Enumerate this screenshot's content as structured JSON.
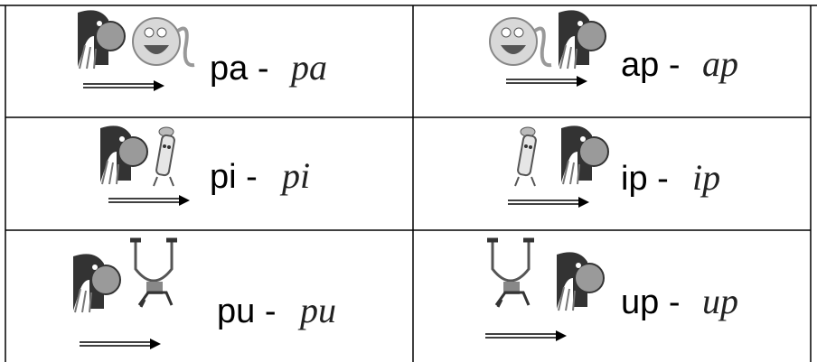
{
  "table": {
    "rows": [
      [
        {
          "syllable": "pa -",
          "cursive": "pa"
        },
        {
          "syllable": "ap -",
          "cursive": "ap"
        }
      ],
      [
        {
          "syllable": "pi -",
          "cursive": "pi"
        },
        {
          "syllable": "ip -",
          "cursive": "ip"
        }
      ],
      [
        {
          "syllable": "pu -",
          "cursive": "pu"
        },
        {
          "syllable": "up -",
          "cursive": "up"
        }
      ]
    ]
  }
}
